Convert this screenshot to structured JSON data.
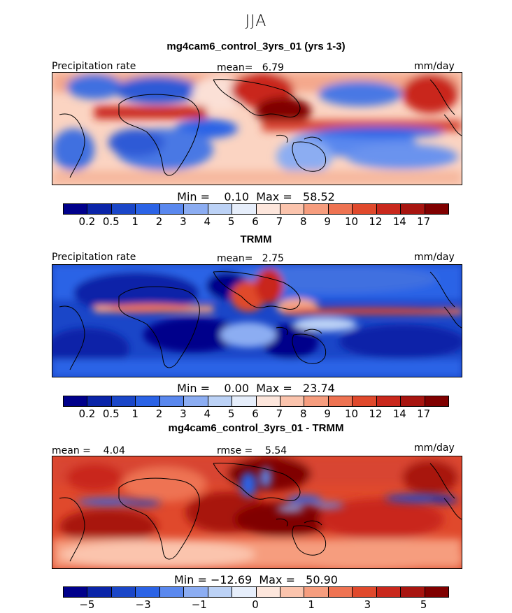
{
  "title": "JJA",
  "chart_data": [
    {
      "type": "heatmap",
      "title": "mg4cam6_control_3yrs_01 (yrs 1-3)",
      "left_label": "Precipitation rate",
      "center_label": "mean=   6.79",
      "units": "mm/day",
      "stats": "Min =    0.10  Max =   58.52",
      "colorbar": {
        "colors": [
          "#00008b",
          "#0a24a8",
          "#1a46c8",
          "#2b63e6",
          "#5a88ee",
          "#8cadf2",
          "#bcd2f6",
          "#e6eefb",
          "#fde6dc",
          "#fbc4ad",
          "#f69d7e",
          "#ee7352",
          "#e0492c",
          "#c9281c",
          "#a81510",
          "#800000"
        ],
        "tick_labels": [
          "0.2",
          "0.5",
          "1",
          "2",
          "3",
          "4",
          "5",
          "6",
          "7",
          "8",
          "9",
          "10",
          "12",
          "14",
          "17"
        ]
      }
    },
    {
      "type": "heatmap",
      "title": "TRMM",
      "left_label": "Precipitation rate",
      "center_label": "mean=   2.75",
      "units": "mm/day",
      "stats": "Min =    0.00  Max =   23.74",
      "colorbar": {
        "colors": [
          "#00008b",
          "#0a24a8",
          "#1a46c8",
          "#2b63e6",
          "#5a88ee",
          "#8cadf2",
          "#bcd2f6",
          "#e6eefb",
          "#fde6dc",
          "#fbc4ad",
          "#f69d7e",
          "#ee7352",
          "#e0492c",
          "#c9281c",
          "#a81510",
          "#800000"
        ],
        "tick_labels": [
          "0.2",
          "0.5",
          "1",
          "2",
          "3",
          "4",
          "5",
          "6",
          "7",
          "8",
          "9",
          "10",
          "12",
          "14",
          "17"
        ]
      }
    },
    {
      "type": "heatmap",
      "title": "mg4cam6_control_3yrs_01 - TRMM",
      "left_label": "mean =    4.04",
      "center_label": "rmse =    5.54",
      "units": "mm/day",
      "stats": "Min = −12.69  Max =   50.90",
      "colorbar": {
        "colors": [
          "#00008b",
          "#0a24a8",
          "#1a46c8",
          "#2b63e6",
          "#5a88ee",
          "#8cadf2",
          "#bcd2f6",
          "#e6eefb",
          "#fde6dc",
          "#fbc4ad",
          "#f69d7e",
          "#ee7352",
          "#e0492c",
          "#c9281c",
          "#a81510",
          "#800000"
        ],
        "tick_labels": [
          "−5",
          "",
          "−3",
          "",
          "−1",
          "",
          "0",
          "",
          "1",
          "",
          "3",
          "",
          "5"
        ]
      }
    }
  ]
}
